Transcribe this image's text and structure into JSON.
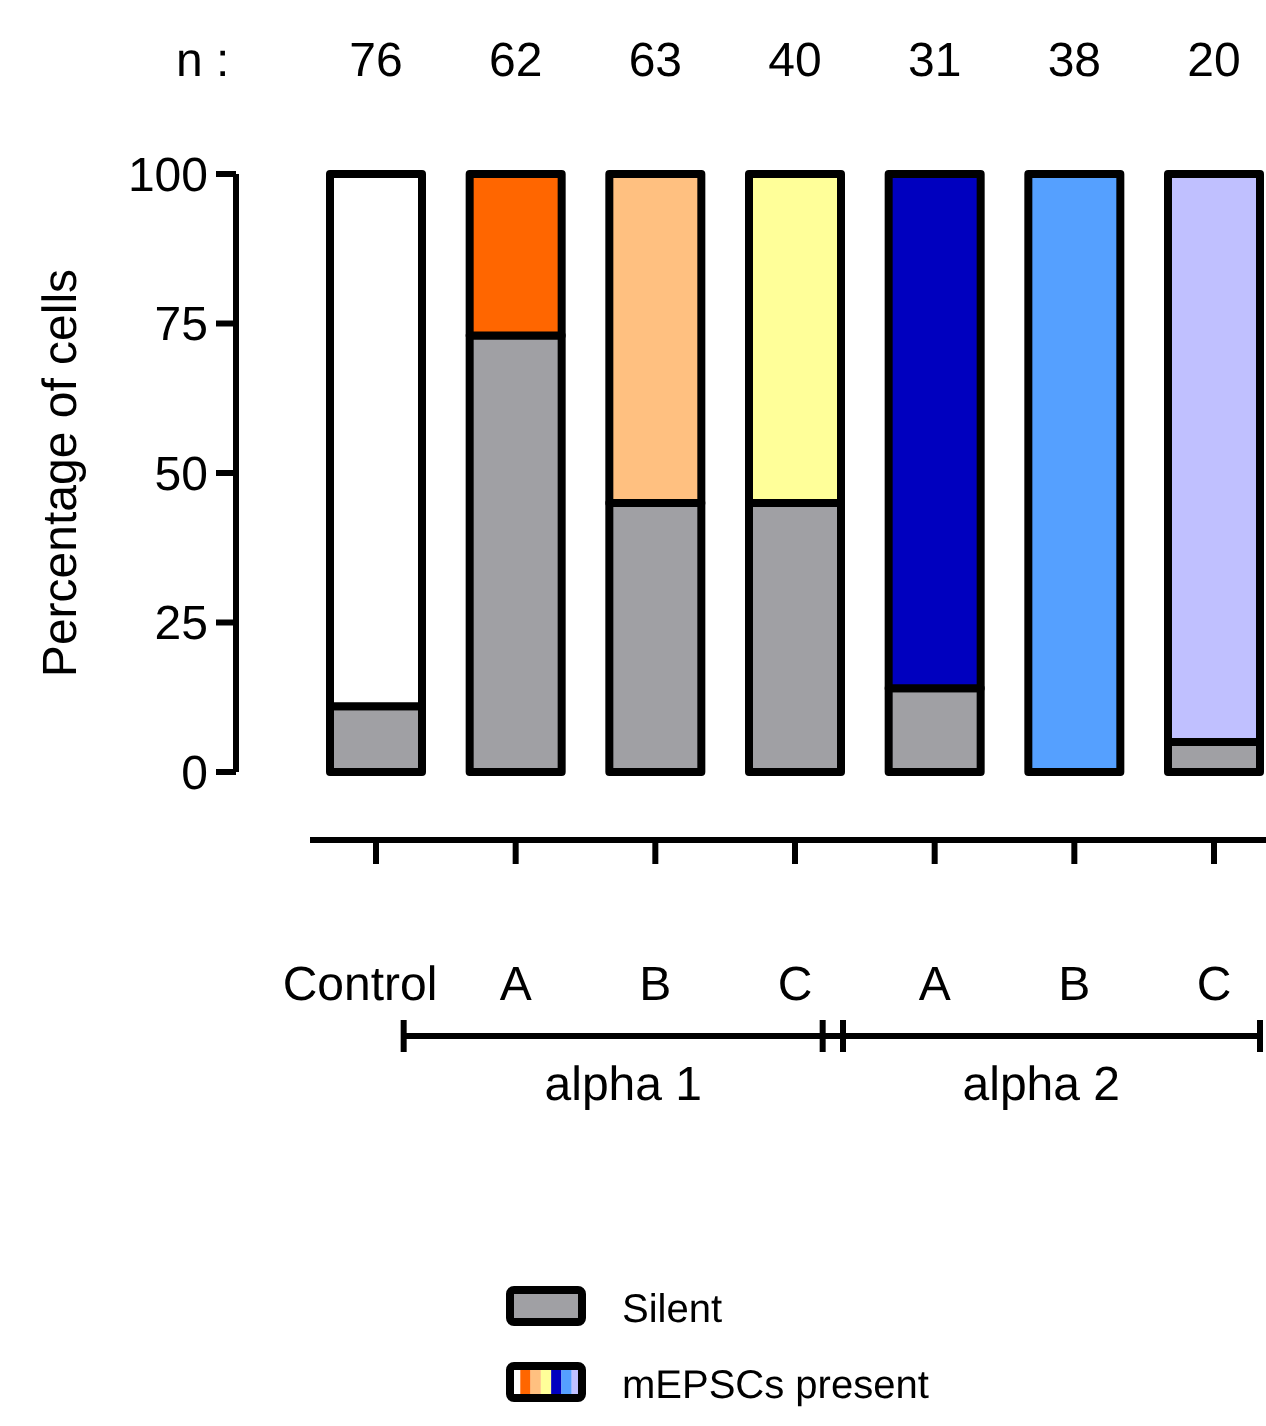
{
  "chart_data": {
    "type": "bar",
    "stacked": true,
    "ylabel": "Percentage of cells",
    "categories": [
      "Control",
      "A",
      "B",
      "C",
      "A",
      "B",
      "C"
    ],
    "series": [
      {
        "name": "Silent",
        "color": "#a0a0a4",
        "values": [
          11,
          73,
          45,
          45,
          14,
          0,
          5
        ]
      },
      {
        "name": "mEPSCs present",
        "colors": [
          "#ffffff",
          "#ff6600",
          "#ffc080",
          "#ffff99",
          "#0000bf",
          "#55a0ff",
          "#c0c0ff"
        ],
        "values": [
          89,
          27,
          55,
          55,
          86,
          100,
          95
        ]
      }
    ],
    "ylim": [
      0,
      100
    ],
    "yticks": [
      0,
      25,
      50,
      75,
      100
    ],
    "annotations": [
      "n :",
      "76",
      "62",
      "63",
      "40",
      "31",
      "38",
      "20",
      "alpha 1",
      "alpha 2"
    ],
    "grid": false,
    "legend": "bottom"
  }
}
